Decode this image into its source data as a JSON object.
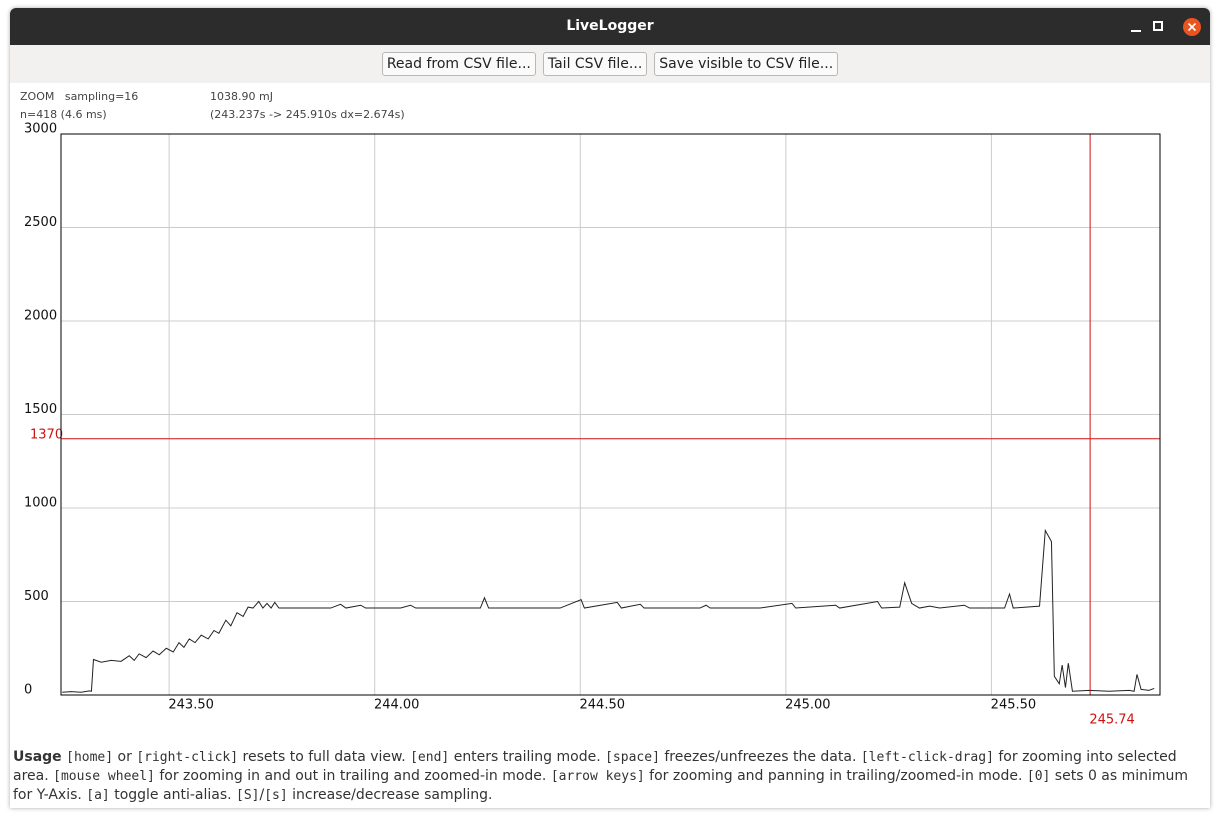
{
  "window": {
    "title": "LiveLogger"
  },
  "toolbar": {
    "buttons": [
      "Read from CSV file...",
      "Tail CSV file...",
      "Save visible to CSV file..."
    ]
  },
  "info": {
    "mode": "ZOOM   sampling=16",
    "count": "n=418 (4.6 ms)",
    "energy": "1038.90 mJ",
    "range": "(243.237s -> 245.910s dx=2.674s)"
  },
  "chart_data": {
    "type": "line",
    "color": "#222222",
    "grid": true,
    "xlim": [
      243.237,
      245.91
    ],
    "ylim": [
      0,
      3000
    ],
    "xticks": [
      {
        "value": 243.5,
        "label": "243.50"
      },
      {
        "value": 244,
        "label": "244.00"
      },
      {
        "value": 244.5,
        "label": "244.50"
      },
      {
        "value": 245,
        "label": "245.00"
      },
      {
        "value": 245.5,
        "label": "245.50"
      }
    ],
    "yticks": [
      0,
      500,
      1000,
      1500,
      2000,
      2500,
      3000
    ],
    "cursor": {
      "x": 245.74,
      "y": 1370,
      "color": "#d01010"
    },
    "x": [
      243.24,
      243.262,
      243.286,
      243.306,
      243.311,
      243.316,
      243.335,
      243.359,
      243.383,
      243.403,
      243.415,
      243.427,
      243.444,
      243.461,
      243.476,
      243.493,
      243.51,
      243.524,
      243.536,
      243.549,
      243.563,
      243.578,
      243.595,
      243.609,
      243.621,
      243.638,
      243.65,
      243.665,
      243.68,
      243.692,
      243.704,
      243.718,
      243.728,
      243.738,
      243.748,
      243.757,
      243.767,
      243.82,
      243.893,
      243.917,
      243.93,
      243.966,
      243.978,
      244.063,
      244.087,
      244.1,
      244.184,
      244.257,
      244.267,
      244.277,
      244.379,
      244.451,
      244.502,
      244.51,
      244.59,
      244.6,
      244.646,
      244.655,
      244.791,
      244.806,
      244.816,
      244.937,
      245.015,
      245.024,
      245.121,
      245.131,
      245.223,
      245.233,
      245.277,
      245.289,
      245.306,
      245.325,
      245.35,
      245.374,
      245.434,
      245.447,
      245.532,
      245.544,
      245.553,
      245.617,
      245.631,
      245.646,
      245.653,
      245.665,
      245.672,
      245.68,
      245.687,
      245.697,
      245.738,
      245.786,
      245.835,
      245.847,
      245.854,
      245.864,
      245.883,
      245.896
    ],
    "values": [
      15,
      18,
      15,
      22,
      20,
      190,
      175,
      185,
      180,
      210,
      185,
      220,
      200,
      235,
      215,
      250,
      230,
      280,
      255,
      300,
      280,
      320,
      300,
      345,
      330,
      400,
      370,
      440,
      420,
      470,
      465,
      500,
      465,
      490,
      465,
      495,
      465,
      465,
      465,
      485,
      465,
      480,
      465,
      465,
      480,
      465,
      465,
      465,
      520,
      465,
      465,
      465,
      510,
      465,
      495,
      465,
      485,
      465,
      465,
      480,
      465,
      465,
      490,
      465,
      480,
      465,
      500,
      465,
      470,
      600,
      490,
      465,
      475,
      465,
      480,
      465,
      465,
      540,
      465,
      475,
      880,
      820,
      100,
      60,
      160,
      40,
      170,
      20,
      25,
      20,
      25,
      20,
      110,
      30,
      25,
      35
    ]
  },
  "usage": {
    "label": "Usage",
    "parts": [
      {
        "text": "[home]",
        "mono": true
      },
      {
        "text": " or ",
        "mono": false
      },
      {
        "text": "[right-click]",
        "mono": true
      },
      {
        "text": " resets to full data view. ",
        "mono": false
      },
      {
        "text": "[end]",
        "mono": true
      },
      {
        "text": " enters trailing mode. ",
        "mono": false
      },
      {
        "text": "[space]",
        "mono": true
      },
      {
        "text": " freezes/unfreezes the data. ",
        "mono": false
      },
      {
        "text": "[left-click-drag]",
        "mono": true
      },
      {
        "text": " for zooming into selected area. ",
        "mono": false
      },
      {
        "text": "[mouse wheel]",
        "mono": true
      },
      {
        "text": " for zooming in and out in trailing and zoomed-in mode. ",
        "mono": false
      },
      {
        "text": "[arrow keys]",
        "mono": true
      },
      {
        "text": " for zooming and panning in trailing/zoomed-in mode. ",
        "mono": false
      },
      {
        "text": "[0]",
        "mono": true
      },
      {
        "text": " sets 0 as minimum for Y-Axis. ",
        "mono": false
      },
      {
        "text": "[a]",
        "mono": true
      },
      {
        "text": " toggle anti-alias. ",
        "mono": false
      },
      {
        "text": "[S]",
        "mono": true
      },
      {
        "text": "/",
        "mono": false
      },
      {
        "text": "[s]",
        "mono": true
      },
      {
        "text": " increase/decrease sampling.",
        "mono": false
      }
    ]
  }
}
